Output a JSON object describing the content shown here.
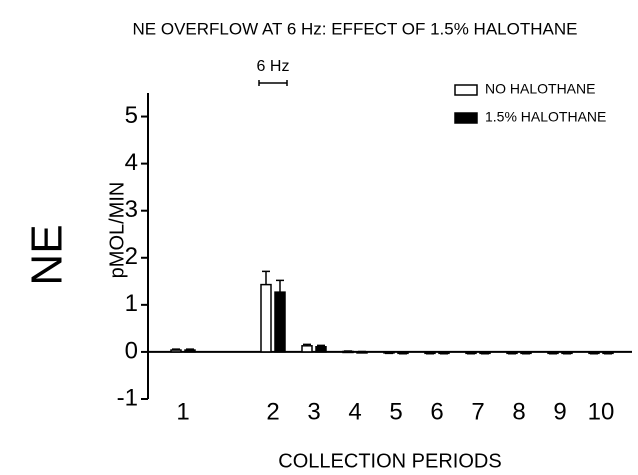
{
  "chart_data": {
    "type": "bar",
    "title": "NE OVERFLOW AT 6 Hz:  EFFECT OF 1.5% HALOTHANE",
    "annotation": "6 Hz",
    "y_label": "pMOL/MIN",
    "y_label_big": "NE",
    "x_label": "COLLECTION PERIODS",
    "categories": [
      "1",
      "2",
      "3",
      "4",
      "5",
      "6",
      "7",
      "8",
      "9",
      "10"
    ],
    "series": [
      {
        "name": "NO HALOTHANE",
        "color": "#ffffff",
        "values": [
          0.04,
          1.43,
          0.13,
          0.01,
          -0.02,
          -0.03,
          -0.03,
          -0.03,
          -0.03,
          -0.03
        ],
        "errors": [
          0.02,
          0.28,
          0.03,
          0.01,
          0.01,
          0.01,
          0.01,
          0.01,
          0.01,
          0.01
        ]
      },
      {
        "name": "1.5% HALOTHANE",
        "color": "#000000",
        "values": [
          0.04,
          1.27,
          0.11,
          0,
          -0.03,
          -0.03,
          -0.03,
          -0.03,
          -0.03,
          -0.03
        ],
        "errors": [
          0.02,
          0.25,
          0.03,
          0.01,
          0.01,
          0.01,
          0.01,
          0.01,
          0.01,
          0.01
        ]
      }
    ],
    "ylim": [
      -1,
      5.5
    ],
    "yticks": [
      -1,
      0,
      1,
      2,
      3,
      4,
      5
    ],
    "legend": "upper right"
  }
}
